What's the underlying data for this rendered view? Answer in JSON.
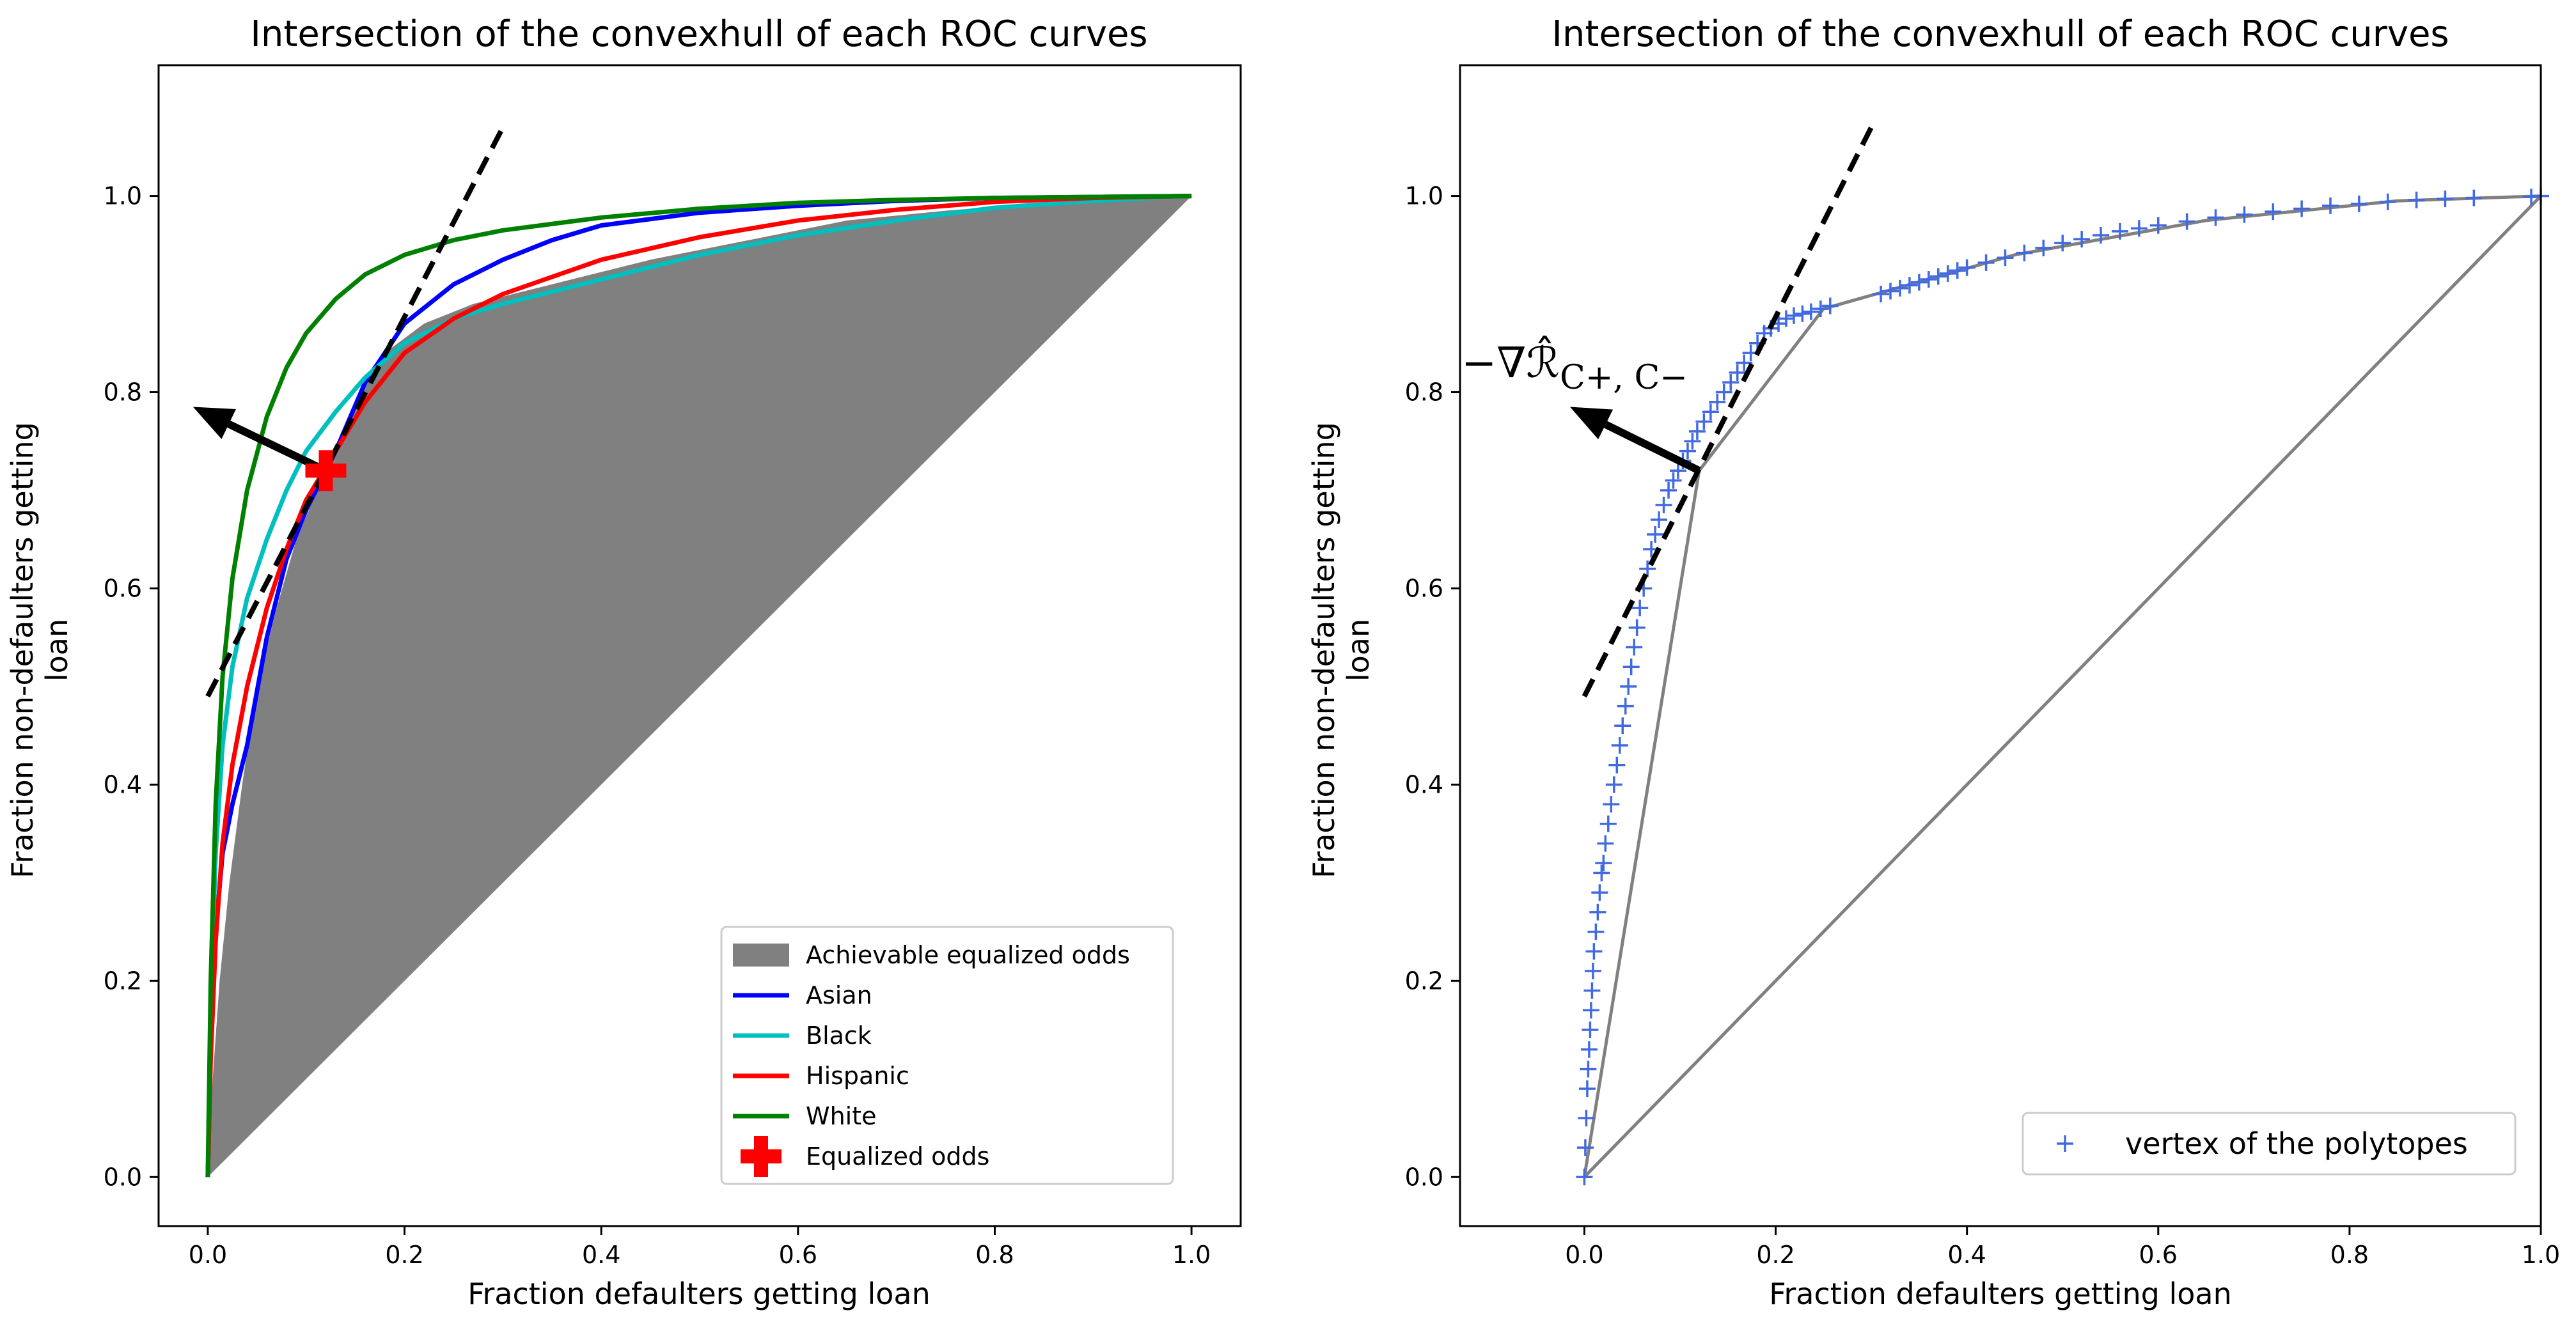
{
  "chart_data": [
    {
      "type": "line",
      "title": "Intersection of the convexhull of each ROC curves",
      "xlabel": "Fraction defaulters getting loan",
      "ylabel": "Fraction non-defaulters getting loan",
      "xlim": [
        -0.05,
        1.05
      ],
      "ylim": [
        -0.05,
        1.1333
      ],
      "xticks": [
        "0.0",
        "0.2",
        "0.4",
        "0.6",
        "0.8",
        "1.0"
      ],
      "yticks": [
        "0.0",
        "0.2",
        "0.4",
        "0.6",
        "0.8",
        "1.0"
      ],
      "grid": false,
      "legend_position": "lower-right",
      "area": {
        "name": "Achievable equalized odds",
        "color": "#808080",
        "points": [
          [
            0,
            0
          ],
          [
            0.005,
            0.1
          ],
          [
            0.012,
            0.2
          ],
          [
            0.022,
            0.3
          ],
          [
            0.035,
            0.4
          ],
          [
            0.05,
            0.5
          ],
          [
            0.07,
            0.58
          ],
          [
            0.09,
            0.65
          ],
          [
            0.12,
            0.72
          ],
          [
            0.15,
            0.79
          ],
          [
            0.18,
            0.84
          ],
          [
            0.22,
            0.87
          ],
          [
            0.27,
            0.89
          ],
          [
            0.35,
            0.91
          ],
          [
            0.45,
            0.935
          ],
          [
            0.55,
            0.955
          ],
          [
            0.65,
            0.975
          ],
          [
            0.75,
            0.985
          ],
          [
            0.85,
            0.993
          ],
          [
            0.93,
            0.998
          ],
          [
            1.0,
            1.0
          ],
          [
            0,
            0
          ]
        ]
      },
      "series": [
        {
          "name": "Asian",
          "color": "#0000ff",
          "x": [
            0,
            0.003,
            0.008,
            0.015,
            0.025,
            0.04,
            0.06,
            0.08,
            0.1,
            0.13,
            0.16,
            0.2,
            0.25,
            0.3,
            0.35,
            0.4,
            0.5,
            0.6,
            0.7,
            0.8,
            0.9,
            1.0
          ],
          "y": [
            0,
            0.13,
            0.25,
            0.33,
            0.38,
            0.44,
            0.55,
            0.63,
            0.68,
            0.74,
            0.81,
            0.87,
            0.91,
            0.935,
            0.955,
            0.97,
            0.983,
            0.99,
            0.995,
            0.998,
            0.999,
            1.0
          ]
        },
        {
          "name": "Black",
          "color": "#00bfbf",
          "x": [
            0,
            0.003,
            0.008,
            0.015,
            0.025,
            0.04,
            0.06,
            0.08,
            0.1,
            0.13,
            0.16,
            0.2,
            0.25,
            0.3,
            0.4,
            0.5,
            0.6,
            0.7,
            0.8,
            0.9,
            1.0
          ],
          "y": [
            0,
            0.18,
            0.33,
            0.44,
            0.52,
            0.59,
            0.65,
            0.7,
            0.74,
            0.78,
            0.815,
            0.85,
            0.875,
            0.89,
            0.915,
            0.94,
            0.96,
            0.975,
            0.988,
            0.995,
            1.0
          ]
        },
        {
          "name": "Hispanic",
          "color": "#ff0000",
          "x": [
            0,
            0.003,
            0.008,
            0.015,
            0.025,
            0.04,
            0.06,
            0.08,
            0.1,
            0.13,
            0.16,
            0.2,
            0.25,
            0.3,
            0.4,
            0.5,
            0.6,
            0.7,
            0.8,
            0.9,
            1.0
          ],
          "y": [
            0,
            0.12,
            0.24,
            0.34,
            0.42,
            0.5,
            0.58,
            0.64,
            0.69,
            0.74,
            0.79,
            0.84,
            0.875,
            0.9,
            0.935,
            0.958,
            0.975,
            0.986,
            0.994,
            0.998,
            1.0
          ]
        },
        {
          "name": "White",
          "color": "#008000",
          "x": [
            0,
            0.003,
            0.008,
            0.015,
            0.025,
            0.04,
            0.06,
            0.08,
            0.1,
            0.13,
            0.16,
            0.2,
            0.25,
            0.3,
            0.4,
            0.5,
            0.6,
            0.7,
            0.8,
            0.9,
            1.0
          ],
          "y": [
            0,
            0.2,
            0.38,
            0.51,
            0.61,
            0.7,
            0.775,
            0.825,
            0.86,
            0.895,
            0.92,
            0.94,
            0.955,
            0.965,
            0.978,
            0.987,
            0.993,
            0.996,
            0.998,
            0.999,
            1.0
          ]
        }
      ],
      "marker": {
        "name": "Equalized odds",
        "color": "#ff0000",
        "x": 0.12,
        "y": 0.72
      },
      "tangent_line": {
        "style": "dashed",
        "color": "#000000",
        "x": [
          0.0,
          0.3
        ],
        "y": [
          0.49,
          1.07
        ]
      },
      "arrow": {
        "color": "#000000",
        "from": [
          0.12,
          0.72
        ],
        "to": [
          -0.015,
          0.785
        ]
      }
    },
    {
      "type": "scatter",
      "title": "Intersection of the convexhull of each ROC curves",
      "xlabel": "Fraction defaulters getting loan",
      "ylabel": "Fraction non-defaulters getting loan",
      "xlim": [
        -0.13,
        1.0
      ],
      "ylim": [
        -0.05,
        1.1333
      ],
      "xticks": [
        "0.0",
        "0.2",
        "0.4",
        "0.6",
        "0.8",
        "1.0"
      ],
      "yticks": [
        "0.0",
        "0.2",
        "0.4",
        "0.6",
        "0.8",
        "1.0"
      ],
      "grid": false,
      "legend_position": "lower-right",
      "series": [
        {
          "name": "vertex of the polytopes",
          "color": "#4169e1",
          "marker": "+",
          "x": [
            0,
            0.001,
            0.002,
            0.003,
            0.004,
            0.005,
            0.006,
            0.007,
            0.008,
            0.009,
            0.01,
            0.012,
            0.014,
            0.016,
            0.018,
            0.02,
            0.022,
            0.025,
            0.028,
            0.031,
            0.034,
            0.037,
            0.04,
            0.043,
            0.046,
            0.049,
            0.052,
            0.055,
            0.058,
            0.062,
            0.066,
            0.07,
            0.074,
            0.078,
            0.083,
            0.088,
            0.093,
            0.098,
            0.103,
            0.108,
            0.113,
            0.118,
            0.125,
            0.132,
            0.139,
            0.146,
            0.153,
            0.16,
            0.167,
            0.174,
            0.181,
            0.188,
            0.195,
            0.203,
            0.211,
            0.219,
            0.228,
            0.237,
            0.247,
            0.257,
            0.31,
            0.32,
            0.33,
            0.34,
            0.35,
            0.36,
            0.37,
            0.38,
            0.39,
            0.4,
            0.42,
            0.44,
            0.46,
            0.48,
            0.5,
            0.52,
            0.54,
            0.56,
            0.58,
            0.6,
            0.63,
            0.66,
            0.69,
            0.72,
            0.75,
            0.78,
            0.81,
            0.84,
            0.87,
            0.9,
            0.93,
            0.99,
            1.0
          ],
          "y": [
            0,
            0.03,
            0.06,
            0.09,
            0.11,
            0.13,
            0.15,
            0.17,
            0.19,
            0.21,
            0.23,
            0.25,
            0.27,
            0.29,
            0.31,
            0.32,
            0.34,
            0.36,
            0.38,
            0.4,
            0.42,
            0.44,
            0.46,
            0.48,
            0.5,
            0.52,
            0.54,
            0.56,
            0.58,
            0.6,
            0.62,
            0.64,
            0.655,
            0.67,
            0.685,
            0.7,
            0.71,
            0.72,
            0.73,
            0.74,
            0.75,
            0.76,
            0.77,
            0.78,
            0.79,
            0.8,
            0.81,
            0.82,
            0.83,
            0.84,
            0.85,
            0.86,
            0.865,
            0.87,
            0.875,
            0.878,
            0.88,
            0.882,
            0.885,
            0.888,
            0.9,
            0.903,
            0.906,
            0.909,
            0.912,
            0.915,
            0.918,
            0.921,
            0.924,
            0.927,
            0.932,
            0.937,
            0.942,
            0.947,
            0.952,
            0.956,
            0.96,
            0.964,
            0.967,
            0.97,
            0.974,
            0.978,
            0.981,
            0.984,
            0.987,
            0.99,
            0.992,
            0.994,
            0.996,
            0.997,
            0.998,
            0.999,
            1.0
          ]
        }
      ],
      "hull_line": {
        "color": "#808080",
        "x": [
          0,
          0.12,
          0.25,
          0.45,
          0.65,
          0.85,
          1.0
        ],
        "y": [
          0,
          0.72,
          0.885,
          0.94,
          0.975,
          0.995,
          1.0
        ]
      },
      "diagonal": {
        "color": "#808080",
        "x": [
          0,
          1
        ],
        "y": [
          0,
          1
        ]
      },
      "tangent_line": {
        "style": "dashed",
        "color": "#000000",
        "x": [
          0.0,
          0.3
        ],
        "y": [
          0.49,
          1.07
        ]
      },
      "arrow": {
        "color": "#000000",
        "from": [
          0.12,
          0.72
        ],
        "to": [
          -0.015,
          0.785
        ]
      },
      "annotation": "−∇ℛ̂",
      "annotation_subscript": "C+, C−"
    }
  ]
}
